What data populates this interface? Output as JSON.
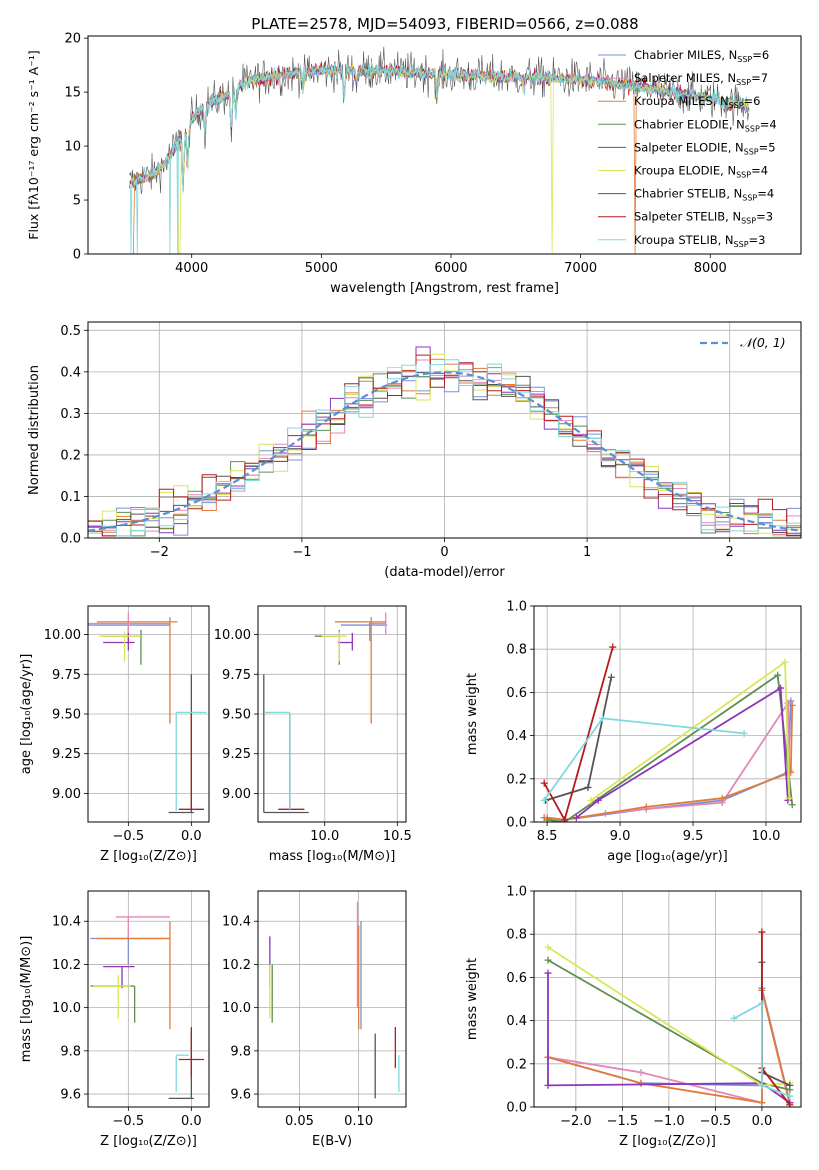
{
  "title": "PLATE=2578, MJD=54093, FIBERID=0566, z=0.088",
  "colors": {
    "Chabrier MILES": "#7b8fd6",
    "Salpeter MILES": "#e586b9",
    "Kroupa MILES": "#e07b39",
    "Chabrier ELODIE": "#5f8f4e",
    "Salpeter ELODIE": "#8e35b8",
    "Kroupa ELODIE": "#d9e65a",
    "Chabrier STELIB": "#555555",
    "Salpeter STELIB": "#b51d1d",
    "Kroupa STELIB": "#7fd9de"
  },
  "chart_data": [
    {
      "type": "line",
      "xlabel": "wavelength [Angstrom, rest frame]",
      "ylabel": "Flux [fλ10⁻¹⁷ erg cm⁻² s⁻¹ A⁻¹]",
      "xlim": [
        3200,
        8700
      ],
      "ylim": [
        0,
        20.2
      ],
      "xticks": [
        4000,
        5000,
        6000,
        7000,
        8000
      ],
      "yticks": [
        0,
        5,
        10,
        15,
        20
      ],
      "legend_position": "top-right",
      "legend": [
        "Chabrier MILES, N_SSP=6",
        "Salpeter MILES, N_SSP=7",
        "Kroupa MILES, N_SSP=6",
        "Chabrier ELODIE, N_SSP=4",
        "Salpeter ELODIE, N_SSP=5",
        "Kroupa ELODIE, N_SSP=4",
        "Chabrier STELIB, N_SSP=4",
        "Salpeter STELIB, N_SSP=3",
        "Kroupa STELIB, N_SSP=3"
      ],
      "continuum": {
        "x": [
          3500,
          3600,
          3700,
          3800,
          3900,
          4000,
          4100,
          4200,
          4300,
          4400,
          4500,
          4700,
          5000,
          5200,
          5500,
          6000,
          6500,
          7000,
          7500,
          8000,
          8300
        ],
        "y": [
          6.5,
          7.0,
          7.3,
          8.5,
          10.5,
          12.5,
          13.8,
          14.3,
          15.0,
          15.8,
          16.2,
          16.6,
          17.0,
          17.0,
          17.0,
          16.6,
          16.4,
          16.2,
          15.4,
          14.4,
          13.7
        ]
      },
      "absorption": [
        {
          "x": 3934,
          "depth": 5.0
        },
        {
          "x": 3968,
          "depth": 4.0
        },
        {
          "x": 4102,
          "depth": 2.5
        },
        {
          "x": 4305,
          "depth": 3.5
        },
        {
          "x": 4340,
          "depth": 2.5
        },
        {
          "x": 4861,
          "depth": 1.5
        },
        {
          "x": 5175,
          "depth": 2.5
        },
        {
          "x": 5270,
          "depth": 1.2
        },
        {
          "x": 5893,
          "depth": 2.5
        },
        {
          "x": 6563,
          "depth": 1.2
        }
      ],
      "dropouts": [
        {
          "name": "Kroupa STELIB",
          "x": [
            3530,
            3580,
            3830,
            3890
          ]
        },
        {
          "name": "Kroupa MILES",
          "x": [
            3545,
            7420
          ]
        },
        {
          "name": "Kroupa ELODIE",
          "x": [
            3905,
            6780
          ]
        }
      ]
    },
    {
      "type": "histogram",
      "xlabel": "(data-model)/error",
      "ylabel": "Normed distribution",
      "xlim": [
        -2.5,
        2.5
      ],
      "ylim": [
        0,
        0.52
      ],
      "xticks": [
        -2,
        -1,
        0,
        1,
        2
      ],
      "yticks": [
        0.0,
        0.1,
        0.2,
        0.3,
        0.4,
        0.5
      ],
      "legend": [
        "𝒩(0, 1)"
      ],
      "legend_position": "top-right",
      "bin_width": 0.1,
      "reference": "N(0,1) density"
    },
    {
      "type": "scatter",
      "xlabel": "Z [log₁₀(Z/Z⊙)]",
      "ylabel": "age  [log₁₀(age/yr)]",
      "xlim": [
        -0.82,
        0.14
      ],
      "ylim": [
        8.82,
        10.18
      ],
      "xticks": [
        -0.5,
        0.0
      ],
      "yticks": [
        9.0,
        9.25,
        9.5,
        9.75,
        10.0
      ],
      "points": [
        {
          "name": "Chabrier MILES",
          "x": -0.5,
          "y": 10.06,
          "xerr": [
            0.33,
            0.33
          ],
          "yerr": [
            0.1,
            0.02
          ]
        },
        {
          "name": "Salpeter MILES",
          "x": -0.5,
          "y": 10.07,
          "xerr": [
            0.32,
            0.33
          ],
          "yerr": [
            0.07,
            0.07
          ]
        },
        {
          "name": "Kroupa MILES",
          "x": -0.17,
          "y": 10.08,
          "xerr": [
            0.58,
            0.06
          ],
          "yerr": [
            0.64,
            0.03
          ]
        },
        {
          "name": "Chabrier ELODIE",
          "x": -0.4,
          "y": 9.99,
          "xerr": [
            0.3,
            0.0
          ],
          "yerr": [
            0.18,
            0.04
          ]
        },
        {
          "name": "Salpeter ELODIE",
          "x": -0.5,
          "y": 9.95,
          "xerr": [
            0.2,
            0.05
          ],
          "yerr": [
            0.05,
            0.06
          ]
        },
        {
          "name": "Kroupa ELODIE",
          "x": -0.53,
          "y": 9.99,
          "xerr": [
            0.2,
            0.13
          ],
          "yerr": [
            0.16,
            0.03
          ]
        },
        {
          "name": "Chabrier STELIB",
          "x": 0.0,
          "y": 8.88,
          "xerr": [
            0.18,
            0.02
          ],
          "yerr": [
            0.0,
            0.87
          ]
        },
        {
          "name": "Salpeter STELIB",
          "x": 0.0,
          "y": 8.9,
          "xerr": [
            0.1,
            0.1
          ],
          "yerr": [
            0.0,
            0.6
          ]
        },
        {
          "name": "Kroupa STELIB",
          "x": -0.12,
          "y": 9.51,
          "xerr": [
            0.0,
            0.24
          ],
          "yerr": [
            0.62,
            0.0
          ]
        }
      ]
    },
    {
      "type": "scatter",
      "xlabel": "mass [log₁₀(M/M⊙)]",
      "ylabel": "",
      "xlim": [
        9.54,
        10.56
      ],
      "ylim": [
        8.82,
        10.18
      ],
      "xticks": [
        10.0,
        10.5
      ],
      "yticks": [
        9.0,
        9.25,
        9.5,
        9.75,
        10.0
      ],
      "points": [
        {
          "name": "Chabrier MILES",
          "x": 10.31,
          "y": 10.06,
          "xerr": [
            0.2,
            0.12
          ],
          "yerr": [
            0.1,
            0.02
          ]
        },
        {
          "name": "Salpeter MILES",
          "x": 10.42,
          "y": 10.07,
          "xerr": [
            0.1,
            0.0
          ],
          "yerr": [
            0.07,
            0.07
          ]
        },
        {
          "name": "Kroupa MILES",
          "x": 10.32,
          "y": 10.08,
          "xerr": [
            0.25,
            0.1
          ],
          "yerr": [
            0.64,
            0.03
          ]
        },
        {
          "name": "Chabrier ELODIE",
          "x": 10.1,
          "y": 9.99,
          "xerr": [
            0.17,
            0.0
          ],
          "yerr": [
            0.18,
            0.04
          ]
        },
        {
          "name": "Salpeter ELODIE",
          "x": 10.19,
          "y": 9.95,
          "xerr": [
            0.1,
            0.0
          ],
          "yerr": [
            0.05,
            0.06
          ]
        },
        {
          "name": "Kroupa ELODIE",
          "x": 10.1,
          "y": 9.99,
          "xerr": [
            0.12,
            0.05
          ],
          "yerr": [
            0.16,
            0.03
          ]
        },
        {
          "name": "Chabrier STELIB",
          "x": 9.58,
          "y": 8.88,
          "xerr": [
            0.0,
            0.31
          ],
          "yerr": [
            0.0,
            0.87
          ]
        },
        {
          "name": "Salpeter STELIB",
          "x": 9.76,
          "y": 8.9,
          "xerr": [
            0.08,
            0.1
          ],
          "yerr": [
            0.0,
            0.6
          ]
        },
        {
          "name": "Kroupa STELIB",
          "x": 9.76,
          "y": 9.51,
          "xerr": [
            0.17,
            0.0
          ],
          "yerr": [
            0.62,
            0.0
          ]
        }
      ]
    },
    {
      "type": "line",
      "xlabel": "age  [log₁₀(age/yr)]",
      "ylabel": "mass weight",
      "xlim": [
        8.41,
        10.24
      ],
      "ylim": [
        0,
        1.0
      ],
      "xticks": [
        8.5,
        9.0,
        9.5,
        10.0
      ],
      "yticks": [
        0.0,
        0.2,
        0.4,
        0.6,
        0.8,
        1.0
      ],
      "series": [
        {
          "name": "Chabrier MILES",
          "x": [
            8.5,
            8.62,
            9.18,
            9.7,
            10.15,
            10.17
          ],
          "y": [
            0.02,
            0.01,
            0.06,
            0.1,
            0.23,
            0.56
          ]
        },
        {
          "name": "Salpeter MILES",
          "x": [
            8.5,
            8.62,
            8.9,
            9.18,
            9.7,
            10.15,
            10.16
          ],
          "y": [
            0.02,
            0.01,
            0.04,
            0.06,
            0.09,
            0.55,
            0.24
          ]
        },
        {
          "name": "Kroupa MILES",
          "x": [
            8.48,
            8.62,
            9.18,
            9.7,
            10.17,
            10.18
          ],
          "y": [
            0.02,
            0.01,
            0.07,
            0.11,
            0.23,
            0.54
          ]
        },
        {
          "name": "Chabrier ELODIE",
          "x": [
            8.5,
            8.62,
            10.08,
            10.18
          ],
          "y": [
            0.01,
            0.0,
            0.68,
            0.08
          ]
        },
        {
          "name": "Salpeter ELODIE",
          "x": [
            8.7,
            8.85,
            10.1,
            10.15
          ],
          "y": [
            0.02,
            0.1,
            0.62,
            0.1
          ]
        },
        {
          "name": "Kroupa ELODIE",
          "x": [
            8.8,
            10.13,
            10.16
          ],
          "y": [
            0.1,
            0.74,
            0.11
          ]
        },
        {
          "name": "Chabrier STELIB",
          "x": [
            8.49,
            8.78,
            8.94
          ],
          "y": [
            0.1,
            0.16,
            0.67
          ]
        },
        {
          "name": "Salpeter STELIB",
          "x": [
            8.48,
            8.62,
            8.95
          ],
          "y": [
            0.18,
            0.01,
            0.81
          ]
        },
        {
          "name": "Kroupa STELIB",
          "x": [
            8.48,
            8.88,
            9.85
          ],
          "y": [
            0.1,
            0.48,
            0.41
          ]
        }
      ]
    },
    {
      "type": "scatter",
      "xlabel": "Z [log₁₀(Z/Z⊙)]",
      "ylabel": "mass [log₁₀(M/M⊙)]",
      "xlim": [
        -0.82,
        0.14
      ],
      "ylim": [
        9.54,
        10.54
      ],
      "xticks": [
        -0.5,
        0.0
      ],
      "yticks": [
        9.6,
        9.8,
        10.0,
        10.2,
        10.4
      ],
      "points": [
        {
          "name": "Chabrier MILES",
          "x": -0.5,
          "y": 10.32,
          "xerr": [
            0.3,
            0.33
          ],
          "yerr": [
            0.12,
            0.02
          ]
        },
        {
          "name": "Salpeter MILES",
          "x": -0.5,
          "y": 10.42,
          "xerr": [
            0.1,
            0.33
          ],
          "yerr": [
            0.1,
            0.0
          ]
        },
        {
          "name": "Kroupa MILES",
          "x": -0.17,
          "y": 10.32,
          "xerr": [
            0.58,
            0.0
          ],
          "yerr": [
            0.42,
            0.08
          ]
        },
        {
          "name": "Chabrier ELODIE",
          "x": -0.45,
          "y": 10.1,
          "xerr": [
            0.35,
            0.0
          ],
          "yerr": [
            0.17,
            0.0
          ]
        },
        {
          "name": "Salpeter ELODIE",
          "x": -0.55,
          "y": 10.19,
          "xerr": [
            0.15,
            0.1
          ],
          "yerr": [
            0.1,
            0.0
          ]
        },
        {
          "name": "Kroupa ELODIE",
          "x": -0.58,
          "y": 10.1,
          "xerr": [
            0.2,
            0.1
          ],
          "yerr": [
            0.15,
            0.05
          ]
        },
        {
          "name": "Chabrier STELIB",
          "x": 0.0,
          "y": 9.58,
          "xerr": [
            0.18,
            0.02
          ],
          "yerr": [
            0.0,
            0.31
          ]
        },
        {
          "name": "Salpeter STELIB",
          "x": 0.0,
          "y": 9.76,
          "xerr": [
            0.1,
            0.1
          ],
          "yerr": [
            0.08,
            0.15
          ]
        },
        {
          "name": "Kroupa STELIB",
          "x": -0.12,
          "y": 9.78,
          "xerr": [
            0.0,
            0.1
          ],
          "yerr": [
            0.17,
            0.0
          ]
        }
      ]
    },
    {
      "type": "scatter",
      "xlabel": "E(B-V)",
      "ylabel": "",
      "xlim": [
        0.015,
        0.14
      ],
      "ylim": [
        9.54,
        10.54
      ],
      "xticks": [
        0.05,
        0.1
      ],
      "yticks": [
        9.6,
        9.8,
        10.0,
        10.2,
        10.4
      ],
      "points": [
        {
          "name": "Chabrier MILES",
          "x": 0.102,
          "y": 10.32,
          "yerr": [
            0.42,
            0.08
          ]
        },
        {
          "name": "Salpeter MILES",
          "x": 0.099,
          "y": 10.42,
          "yerr": [
            0.42,
            0.07
          ]
        },
        {
          "name": "Kroupa MILES",
          "x": 0.1,
          "y": 10.3,
          "yerr": [
            0.4,
            0.08
          ]
        },
        {
          "name": "Chabrier ELODIE",
          "x": 0.027,
          "y": 10.1,
          "yerr": [
            0.17,
            0.1
          ]
        },
        {
          "name": "Salpeter ELODIE",
          "x": 0.025,
          "y": 10.2,
          "yerr": [
            0.1,
            0.13
          ]
        },
        {
          "name": "Kroupa ELODIE",
          "x": 0.025,
          "y": 10.1,
          "yerr": [
            0.15,
            0.1
          ]
        },
        {
          "name": "Chabrier STELIB",
          "x": 0.114,
          "y": 9.6,
          "yerr": [
            0.02,
            0.28
          ]
        },
        {
          "name": "Salpeter STELIB",
          "x": 0.131,
          "y": 9.82,
          "yerr": [
            0.1,
            0.09
          ]
        },
        {
          "name": "Kroupa STELIB",
          "x": 0.134,
          "y": 9.72,
          "yerr": [
            0.11,
            0.06
          ]
        }
      ]
    },
    {
      "type": "line",
      "xlabel": "Z [log₁₀(Z/Z⊙)]",
      "ylabel": "mass weight",
      "xlim": [
        -2.45,
        0.42
      ],
      "ylim": [
        0,
        1.0
      ],
      "xticks": [
        -2.0,
        -1.5,
        -1.0,
        -0.5,
        0.0
      ],
      "yticks": [
        0.0,
        0.2,
        0.4,
        0.6,
        0.8,
        1.0
      ],
      "series": [
        {
          "name": "Chabrier MILES",
          "x": [
            -2.3,
            -1.3,
            0.0,
            0.0,
            0.3
          ],
          "y": [
            0.23,
            0.11,
            0.1,
            0.55,
            0.02
          ]
        },
        {
          "name": "Salpeter MILES",
          "x": [
            -2.3,
            -1.3,
            0.0,
            0.0,
            0.3
          ],
          "y": [
            0.23,
            0.16,
            0.02,
            0.54,
            0.01
          ]
        },
        {
          "name": "Kroupa MILES",
          "x": [
            -2.3,
            -1.3,
            0.0,
            0.0,
            0.3
          ],
          "y": [
            0.23,
            0.11,
            0.02,
            0.54,
            0.02
          ]
        },
        {
          "name": "Chabrier ELODIE",
          "x": [
            -2.3,
            0.0,
            0.3
          ],
          "y": [
            0.68,
            0.11,
            0.08
          ]
        },
        {
          "name": "Salpeter ELODIE",
          "x": [
            -2.3,
            -2.3,
            0.0,
            0.3
          ],
          "y": [
            0.62,
            0.1,
            0.11,
            0.02
          ]
        },
        {
          "name": "Kroupa ELODIE",
          "x": [
            -2.3,
            0.0,
            0.3
          ],
          "y": [
            0.74,
            0.1,
            0.11
          ]
        },
        {
          "name": "Chabrier STELIB",
          "x": [
            0.0,
            0.0,
            0.3
          ],
          "y": [
            0.67,
            0.16,
            0.1
          ]
        },
        {
          "name": "Salpeter STELIB",
          "x": [
            0.0,
            0.0,
            0.3
          ],
          "y": [
            0.81,
            0.18,
            0.01
          ]
        },
        {
          "name": "Kroupa STELIB",
          "x": [
            -0.3,
            0.0,
            0.0,
            0.3
          ],
          "y": [
            0.41,
            0.48,
            0.1,
            0.05
          ]
        }
      ]
    }
  ]
}
